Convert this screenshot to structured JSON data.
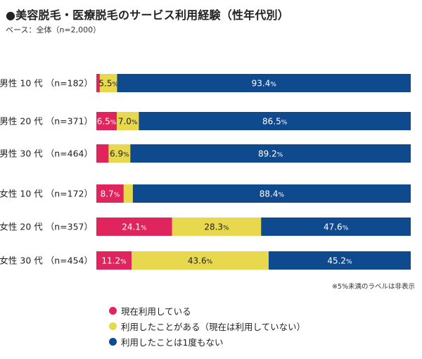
{
  "title": "●美容脱毛・医療脱毛のサービス利用経験（性年代別）",
  "base": "ベース：全体（n=2,000）",
  "note": "※5%未満のラベルは非表示",
  "colors": {
    "current": "#e0245e",
    "past": "#e8d84e",
    "never": "#0f4a8f"
  },
  "chart_data": {
    "type": "bar",
    "orientation": "horizontal",
    "stacked": true,
    "percent": true,
    "xlim": [
      0,
      100
    ],
    "categories": [
      "男性 10 代 （n=182）",
      "男性 20 代 （n=371）",
      "男性 30 代 （n=464）",
      "女性 10 代 （n=172）",
      "女性 20 代 （n=357）",
      "女性 30 代 （n=454）"
    ],
    "series": [
      {
        "name": "現在利用している",
        "color": "#e0245e",
        "values": [
          1.1,
          6.5,
          3.9,
          8.7,
          24.1,
          11.2
        ]
      },
      {
        "name": "利用したことがある（現在は利用していない）",
        "color": "#e8d84e",
        "values": [
          5.5,
          7.0,
          6.9,
          2.9,
          28.3,
          43.6
        ]
      },
      {
        "name": "利用したことは1度もない",
        "color": "#0f4a8f",
        "values": [
          93.4,
          86.5,
          89.2,
          88.4,
          47.6,
          45.2
        ]
      }
    ],
    "label_threshold": 5,
    "legend_position": "bottom",
    "grid": false
  }
}
